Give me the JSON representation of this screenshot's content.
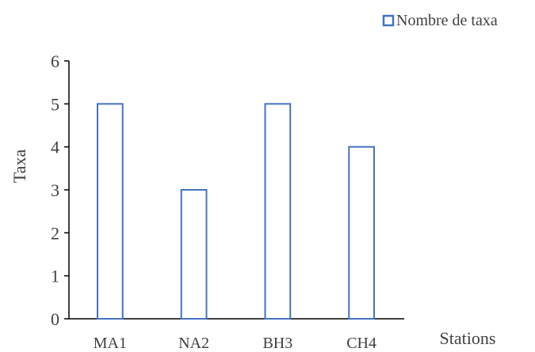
{
  "chart_data": {
    "type": "bar",
    "title": "",
    "xlabel": "Stations",
    "ylabel": "Taxa",
    "categories": [
      "MA1",
      "NA2",
      "BH3",
      "CH4"
    ],
    "series": [
      {
        "name": "Nombre de taxa",
        "values": [
          5,
          3,
          5,
          4
        ]
      }
    ],
    "ylim": [
      0,
      6
    ],
    "yticks": [
      0,
      1,
      2,
      3,
      4,
      5,
      6
    ],
    "grid": false,
    "legend_position": "top-right",
    "colors": {
      "bar_stroke": "#4472C4",
      "bar_fill": "#FFFFFF",
      "axis": "#000000",
      "text": "#404040"
    }
  }
}
